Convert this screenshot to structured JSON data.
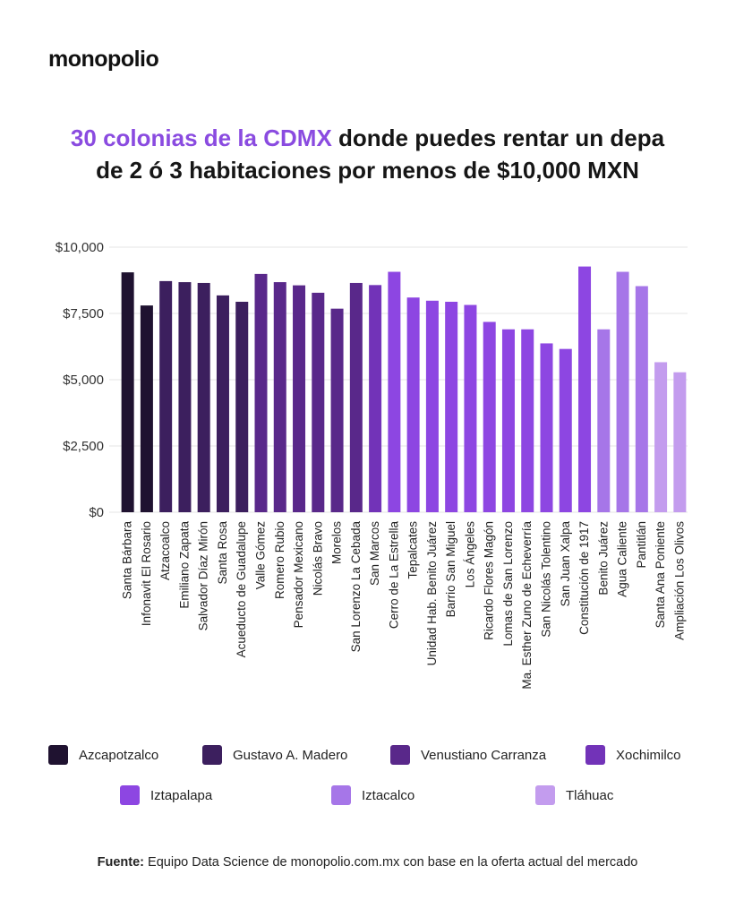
{
  "brand": {
    "logo": "monopolio"
  },
  "title": {
    "highlight": "30 colonias de la CDMX",
    "rest_line1": " donde puedes rentar un depa",
    "line2": "de 2 ó 3 habitaciones por menos de $10,000 MXN"
  },
  "colors": {
    "Azcapotzalco": "#1f1230",
    "Gustavo A. Madero": "#3c1f5e",
    "Venustiano Carranza": "#59288a",
    "Xochimilco": "#7233b8",
    "Iztapalapa": "#8d46e2",
    "Iztacalco": "#a676e8",
    "Tláhuac": "#c39cee",
    "gridline": "#e6e6e6",
    "highlight": "#8a4be0"
  },
  "chart_data": {
    "type": "bar",
    "title": "30 colonias de la CDMX donde puedes rentar un depa de 2 ó 3 habitaciones por menos de $10,000 MXN",
    "xlabel": "",
    "ylabel": "",
    "ylim": [
      0,
      10000
    ],
    "y_ticks": [
      {
        "value": 0,
        "label": "$0"
      },
      {
        "value": 2500,
        "label": "$2,500"
      },
      {
        "value": 5000,
        "label": "$5,000"
      },
      {
        "value": 7500,
        "label": "$7,500"
      },
      {
        "value": 10000,
        "label": "$10,000"
      }
    ],
    "grid": true,
    "categories": [
      "Santa Bárbara",
      "Infonavit El Rosario",
      "Atzacoalco",
      "Emiliano Zapata",
      "Salvador Díaz Mirón",
      "Santa Rosa",
      "Acueducto de Guadalupe",
      "Valle Gómez",
      "Romero Rubio",
      "Pensador Mexicano",
      "Nicolás Bravo",
      "Morelos",
      "San Lorenzo La Cebada",
      "San Marcos",
      "Cerro de La Estrella",
      "Tepalcates",
      "Unidad Hab. Benito Juárez",
      "Barrio San Miguel",
      "Los Ángeles",
      "Ricardo Flores Magón",
      "Lomas de San Lorenzo",
      "Ma. Esther Zuno de Echeverría",
      "San Nicolás Tolentino",
      "San Juan Xalpa",
      "Constitución de 1917",
      "Benito Juárez",
      "Agua Caliente",
      "Pantitlán",
      "Santa Ana Poniente",
      "Ampliación Los Olivos"
    ],
    "values": [
      9050,
      7800,
      8720,
      8680,
      8650,
      8180,
      7940,
      8990,
      8680,
      8560,
      8280,
      7680,
      8650,
      8570,
      9070,
      8100,
      7980,
      7940,
      7820,
      7180,
      6900,
      6900,
      6370,
      6160,
      9270,
      6900,
      9070,
      8530,
      5660,
      5280
    ],
    "groups": [
      "Azcapotzalco",
      "Azcapotzalco",
      "Gustavo A. Madero",
      "Gustavo A. Madero",
      "Gustavo A. Madero",
      "Gustavo A. Madero",
      "Gustavo A. Madero",
      "Venustiano Carranza",
      "Venustiano Carranza",
      "Venustiano Carranza",
      "Venustiano Carranza",
      "Venustiano Carranza",
      "Venustiano Carranza",
      "Xochimilco",
      "Iztapalapa",
      "Iztapalapa",
      "Iztapalapa",
      "Iztapalapa",
      "Iztapalapa",
      "Iztapalapa",
      "Iztapalapa",
      "Iztapalapa",
      "Iztapalapa",
      "Iztapalapa",
      "Iztapalapa",
      "Iztacalco",
      "Iztacalco",
      "Iztacalco",
      "Tláhuac",
      "Tláhuac"
    ],
    "legend": [
      "Azcapotzalco",
      "Gustavo A. Madero",
      "Venustiano Carranza",
      "Xochimilco",
      "Iztapalapa",
      "Iztacalco",
      "Tláhuac"
    ]
  },
  "source": {
    "label": "Fuente:",
    "text": " Equipo Data Science de monopolio.com.mx con base en la oferta actual del mercado"
  }
}
